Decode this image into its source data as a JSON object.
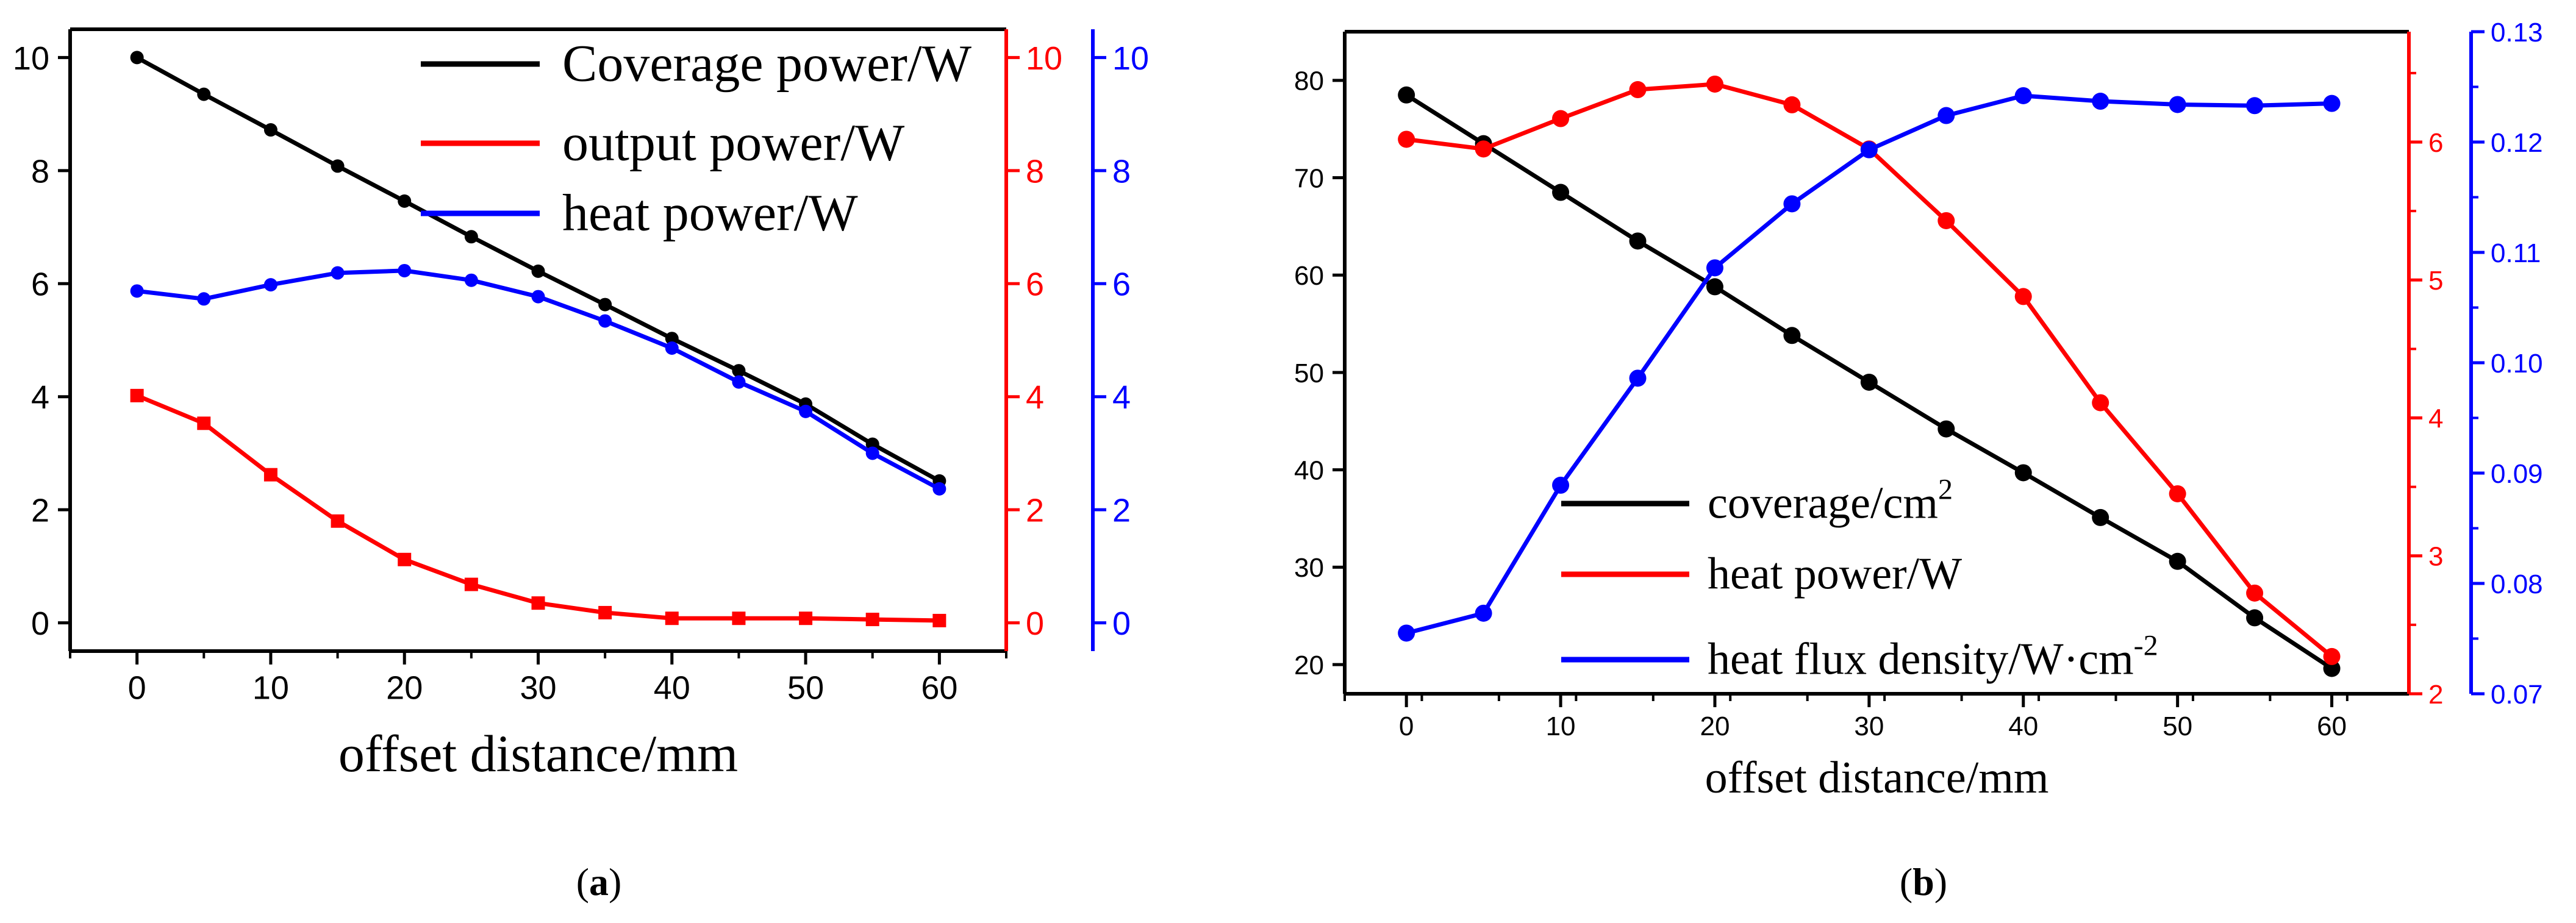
{
  "chart_data": [
    {
      "panel_label": "a",
      "type": "line",
      "xlabel": "offset distance/mm",
      "x_ticks": [
        0,
        10,
        20,
        30,
        40,
        50,
        60
      ],
      "xlim": [
        -5,
        65
      ],
      "axes": {
        "left": {
          "ylim": [
            -0.5,
            10.5
          ],
          "ticks": [
            0,
            2,
            4,
            6,
            8,
            10
          ],
          "color": "#000000"
        },
        "right1": {
          "ylim": [
            -0.5,
            10.5
          ],
          "ticks": [
            0,
            2,
            4,
            6,
            8,
            10
          ],
          "color": "#ff0000"
        },
        "right2": {
          "ylim": [
            -0.5,
            10.5
          ],
          "ticks": [
            0,
            2,
            4,
            6,
            8,
            10
          ],
          "color": "#0000ff"
        }
      },
      "x": [
        0,
        5,
        10,
        15,
        20,
        25,
        30,
        35,
        40,
        45,
        50,
        55,
        60
      ],
      "series": [
        {
          "name": "Coverage power/W",
          "color": "#000000",
          "axis": "left",
          "marker": "circle",
          "values": [
            10.0,
            9.35,
            8.72,
            8.08,
            7.46,
            6.83,
            6.22,
            5.63,
            5.03,
            4.46,
            3.87,
            3.16,
            2.51
          ]
        },
        {
          "name": "output power/W",
          "color": "#ff0000",
          "axis": "right1",
          "marker": "square",
          "values": [
            4.02,
            3.53,
            2.62,
            1.8,
            1.12,
            0.68,
            0.35,
            0.18,
            0.08,
            0.08,
            0.08,
            0.06,
            0.04
          ]
        },
        {
          "name": "heat power/W",
          "color": "#0000ff",
          "axis": "right2",
          "marker": "circle",
          "values": [
            5.87,
            5.73,
            5.98,
            6.19,
            6.23,
            6.06,
            5.77,
            5.34,
            4.86,
            4.26,
            3.74,
            3.0,
            2.37
          ]
        }
      ],
      "caption": "a"
    },
    {
      "panel_label": "b",
      "type": "line",
      "xlabel": "offset distance/mm",
      "x_ticks": [
        0,
        10,
        20,
        30,
        40,
        50,
        60
      ],
      "xlim": [
        -4,
        65
      ],
      "axes": {
        "left": {
          "ylim": [
            17,
            85
          ],
          "ticks": [
            20,
            30,
            40,
            50,
            60,
            70,
            80
          ],
          "color": "#000000"
        },
        "right1": {
          "ylim": [
            2,
            6.8
          ],
          "ticks": [
            2,
            3,
            4,
            5,
            6
          ],
          "color": "#ff0000"
        },
        "right2": {
          "ylim": [
            0.07,
            0.13
          ],
          "ticks": [
            "0.07",
            "0.08",
            "0.09",
            "0.10",
            "0.11",
            "0.12",
            "0.13"
          ],
          "color": "#0000ff"
        }
      },
      "x": [
        0,
        5,
        10,
        15,
        20,
        25,
        30,
        35,
        40,
        45,
        50,
        55,
        60
      ],
      "series": [
        {
          "name": "coverage/cm",
          "name_sup": "2",
          "color": "#000000",
          "axis": "left",
          "marker": "circle",
          "values": [
            78.5,
            73.5,
            68.5,
            63.5,
            58.8,
            53.8,
            49.0,
            44.2,
            39.7,
            35.1,
            30.6,
            24.8,
            19.6
          ]
        },
        {
          "name": "heat power/W",
          "color": "#ff0000",
          "axis": "right1",
          "marker": "circle",
          "values": [
            6.02,
            5.95,
            6.17,
            6.38,
            6.42,
            6.27,
            5.95,
            5.43,
            4.88,
            4.11,
            3.45,
            2.73,
            2.27
          ]
        },
        {
          "name": "heat flux density/W·cm",
          "name_sup": "-2",
          "color": "#0000ff",
          "axis": "right2",
          "marker": "circle",
          "values": [
            0.0755,
            0.0773,
            0.0889,
            0.0986,
            0.1086,
            0.1144,
            0.1193,
            0.1224,
            0.1242,
            0.1237,
            0.1234,
            0.1233,
            0.1235
          ]
        }
      ],
      "caption": "b"
    }
  ]
}
